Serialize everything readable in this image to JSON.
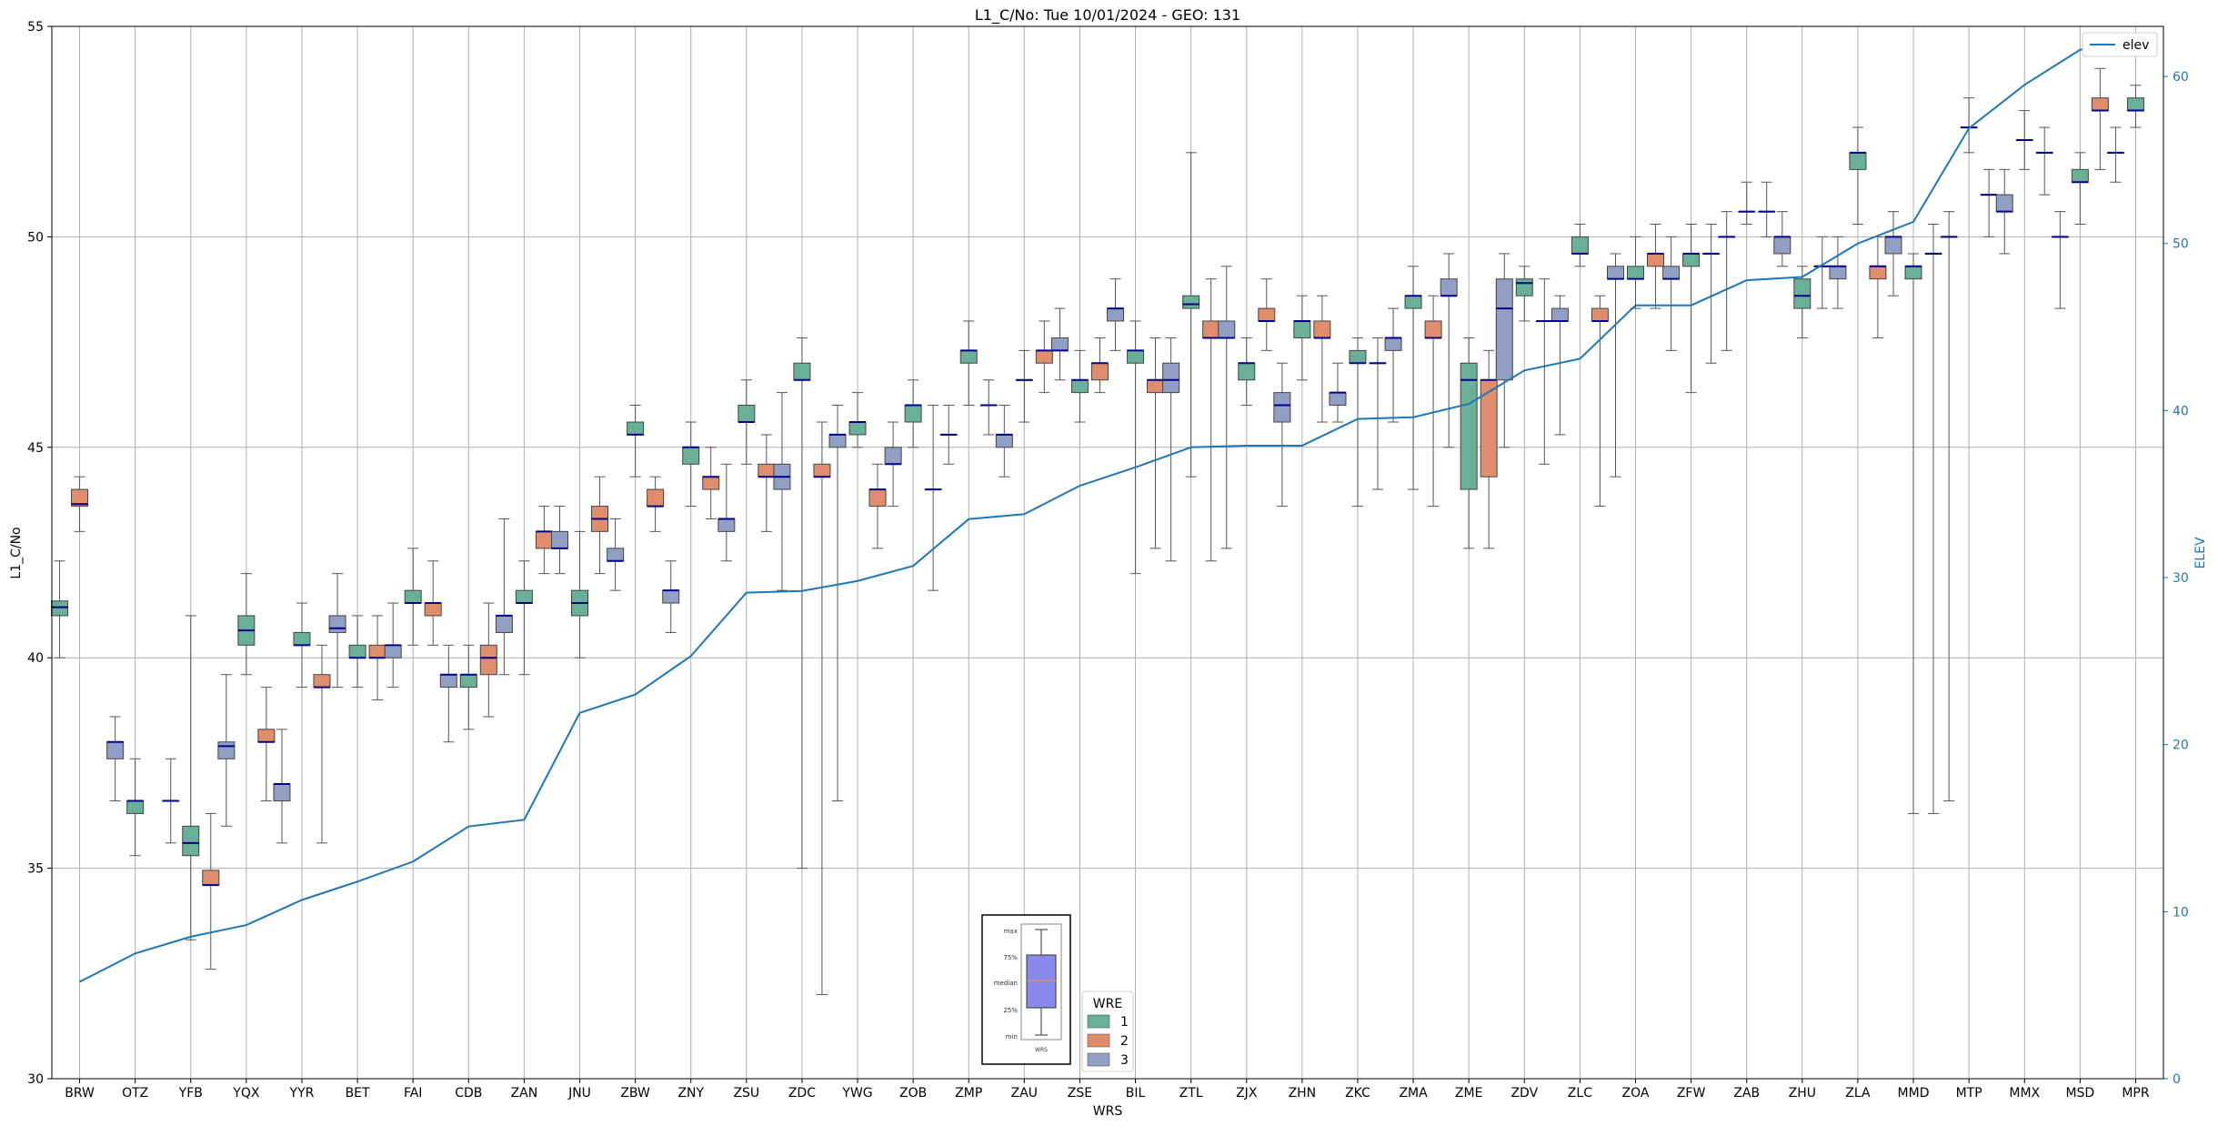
{
  "chart_data": {
    "type": "box",
    "title": "L1_C/No: Tue 10/01/2024 - GEO: 131",
    "xlabel": "WRS",
    "ylabel": "L1_C/No",
    "ylabel_right": "ELEV",
    "ylim": [
      30,
      55
    ],
    "ylim_right": [
      0,
      63
    ],
    "yticks": [
      30,
      35,
      40,
      45,
      50,
      55
    ],
    "yticks_right": [
      0,
      10,
      20,
      30,
      40,
      50,
      60
    ],
    "grid": true,
    "categories": [
      "BRW",
      "OTZ",
      "YFB",
      "YQX",
      "YYR",
      "BET",
      "FAI",
      "CDB",
      "ZAN",
      "JNU",
      "ZBW",
      "ZNY",
      "ZSU",
      "ZDC",
      "YWG",
      "ZOB",
      "ZMP",
      "ZAU",
      "ZSE",
      "BIL",
      "ZTL",
      "ZJX",
      "ZHN",
      "ZKC",
      "ZMA",
      "ZME",
      "ZDV",
      "ZLC",
      "ZOA",
      "ZFW",
      "ZAB",
      "ZHU",
      "ZLA",
      "MMD",
      "MTP",
      "MMX",
      "MSD",
      "MPR"
    ],
    "legend": {
      "title": "WRE",
      "entries": [
        "1",
        "2",
        "3"
      ],
      "placement": "lower-center"
    },
    "colors": {
      "1": "#6aaf97",
      "2": "#e08d6d",
      "3": "#929fc4",
      "median": "#00008b",
      "line": "#1f77b4",
      "whisker": "#555555"
    },
    "elev_legend": "elev",
    "boxes": [
      {
        "cat": "BRW",
        "wre": 1,
        "min": 40.0,
        "q1": 41.0,
        "median": 41.2,
        "q3": 41.35,
        "max": 42.3
      },
      {
        "cat": "BRW",
        "wre": 2,
        "min": 43.0,
        "q1": 43.6,
        "median": 43.65,
        "q3": 44.0,
        "max": 44.3
      },
      {
        "cat": "OTZ",
        "wre": 3,
        "min": 36.6,
        "q1": 37.6,
        "median": 38.0,
        "q3": 38.0,
        "max": 38.6
      },
      {
        "cat": "OTZ",
        "wre": 1,
        "min": 35.3,
        "q1": 36.3,
        "median": 36.6,
        "q3": 36.6,
        "max": 37.6
      },
      {
        "cat": "YFB",
        "wre": 3,
        "min": 35.6,
        "q1": 36.6,
        "median": 36.6,
        "q3": 36.6,
        "max": 37.6
      },
      {
        "cat": "YFB",
        "wre": 1,
        "min": 33.3,
        "q1": 35.3,
        "median": 35.6,
        "q3": 36.0,
        "max": 41.0
      },
      {
        "cat": "YFB",
        "wre": 2,
        "min": 32.6,
        "q1": 34.6,
        "median": 34.6,
        "q3": 34.95,
        "max": 36.3
      },
      {
        "cat": "YQX",
        "wre": 3,
        "min": 36.0,
        "q1": 37.6,
        "median": 37.9,
        "q3": 38.0,
        "max": 39.6
      },
      {
        "cat": "YQX",
        "wre": 1,
        "min": 39.6,
        "q1": 40.3,
        "median": 40.65,
        "q3": 41.0,
        "max": 42.0
      },
      {
        "cat": "YQX",
        "wre": 2,
        "min": 36.6,
        "q1": 38.0,
        "median": 38.0,
        "q3": 38.3,
        "max": 39.3
      },
      {
        "cat": "YYR",
        "wre": 3,
        "min": 35.6,
        "q1": 36.6,
        "median": 37.0,
        "q3": 37.0,
        "max": 38.3
      },
      {
        "cat": "YYR",
        "wre": 1,
        "min": 39.3,
        "q1": 40.3,
        "median": 40.3,
        "q3": 40.6,
        "max": 41.3
      },
      {
        "cat": "YYR",
        "wre": 2,
        "min": 35.6,
        "q1": 39.3,
        "median": 39.3,
        "q3": 39.6,
        "max": 40.3
      },
      {
        "cat": "BET",
        "wre": 3,
        "min": 39.3,
        "q1": 40.6,
        "median": 40.7,
        "q3": 41.0,
        "max": 42.0
      },
      {
        "cat": "BET",
        "wre": 1,
        "min": 39.3,
        "q1": 40.0,
        "median": 40.0,
        "q3": 40.3,
        "max": 41.0
      },
      {
        "cat": "BET",
        "wre": 2,
        "min": 39.0,
        "q1": 40.0,
        "median": 40.0,
        "q3": 40.3,
        "max": 41.0
      },
      {
        "cat": "FAI",
        "wre": 3,
        "min": 39.3,
        "q1": 40.0,
        "median": 40.3,
        "q3": 40.3,
        "max": 41.3
      },
      {
        "cat": "FAI",
        "wre": 1,
        "min": 40.3,
        "q1": 41.3,
        "median": 41.3,
        "q3": 41.6,
        "max": 42.6
      },
      {
        "cat": "FAI",
        "wre": 2,
        "min": 40.3,
        "q1": 41.0,
        "median": 41.3,
        "q3": 41.3,
        "max": 42.3
      },
      {
        "cat": "CDB",
        "wre": 3,
        "min": 38.0,
        "q1": 39.3,
        "median": 39.6,
        "q3": 39.6,
        "max": 40.3
      },
      {
        "cat": "CDB",
        "wre": 1,
        "min": 38.3,
        "q1": 39.3,
        "median": 39.6,
        "q3": 39.6,
        "max": 40.3
      },
      {
        "cat": "CDB",
        "wre": 2,
        "min": 38.6,
        "q1": 39.6,
        "median": 40.0,
        "q3": 40.3,
        "max": 41.3
      },
      {
        "cat": "ZAN",
        "wre": 3,
        "min": 39.6,
        "q1": 40.6,
        "median": 41.0,
        "q3": 41.0,
        "max": 43.3
      },
      {
        "cat": "ZAN",
        "wre": 1,
        "min": 39.6,
        "q1": 41.3,
        "median": 41.3,
        "q3": 41.6,
        "max": 42.3
      },
      {
        "cat": "ZAN",
        "wre": 2,
        "min": 42.0,
        "q1": 42.6,
        "median": 43.0,
        "q3": 43.0,
        "max": 43.6
      },
      {
        "cat": "JNU",
        "wre": 3,
        "min": 42.0,
        "q1": 42.6,
        "median": 42.6,
        "q3": 43.0,
        "max": 43.6
      },
      {
        "cat": "JNU",
        "wre": 1,
        "min": 40.0,
        "q1": 41.0,
        "median": 41.3,
        "q3": 41.6,
        "max": 43.0
      },
      {
        "cat": "JNU",
        "wre": 2,
        "min": 42.0,
        "q1": 43.0,
        "median": 43.3,
        "q3": 43.6,
        "max": 44.3
      },
      {
        "cat": "ZBW",
        "wre": 3,
        "min": 41.6,
        "q1": 42.3,
        "median": 42.3,
        "q3": 42.6,
        "max": 43.3
      },
      {
        "cat": "ZBW",
        "wre": 1,
        "min": 44.3,
        "q1": 45.3,
        "median": 45.3,
        "q3": 45.6,
        "max": 46.0
      },
      {
        "cat": "ZBW",
        "wre": 2,
        "min": 43.0,
        "q1": 43.6,
        "median": 43.6,
        "q3": 44.0,
        "max": 44.3
      },
      {
        "cat": "ZNY",
        "wre": 3,
        "min": 40.6,
        "q1": 41.3,
        "median": 41.6,
        "q3": 41.6,
        "max": 42.3
      },
      {
        "cat": "ZNY",
        "wre": 1,
        "min": 43.6,
        "q1": 44.6,
        "median": 45.0,
        "q3": 45.0,
        "max": 45.6
      },
      {
        "cat": "ZNY",
        "wre": 2,
        "min": 43.3,
        "q1": 44.0,
        "median": 44.3,
        "q3": 44.3,
        "max": 45.0
      },
      {
        "cat": "ZSU",
        "wre": 3,
        "min": 42.3,
        "q1": 43.0,
        "median": 43.3,
        "q3": 43.3,
        "max": 44.6
      },
      {
        "cat": "ZSU",
        "wre": 1,
        "min": 44.6,
        "q1": 45.6,
        "median": 45.6,
        "q3": 46.0,
        "max": 46.6
      },
      {
        "cat": "ZSU",
        "wre": 2,
        "min": 43.0,
        "q1": 44.3,
        "median": 44.3,
        "q3": 44.6,
        "max": 45.3
      },
      {
        "cat": "ZDC",
        "wre": 3,
        "min": 41.6,
        "q1": 44.0,
        "median": 44.3,
        "q3": 44.6,
        "max": 46.3
      },
      {
        "cat": "ZDC",
        "wre": 1,
        "min": 35.0,
        "q1": 46.6,
        "median": 46.6,
        "q3": 47.0,
        "max": 47.6
      },
      {
        "cat": "ZDC",
        "wre": 2,
        "min": 32.0,
        "q1": 44.3,
        "median": 44.3,
        "q3": 44.6,
        "max": 45.6
      },
      {
        "cat": "YWG",
        "wre": 3,
        "min": 36.6,
        "q1": 45.0,
        "median": 45.3,
        "q3": 45.3,
        "max": 46.0
      },
      {
        "cat": "YWG",
        "wre": 1,
        "min": 45.0,
        "q1": 45.3,
        "median": 45.6,
        "q3": 45.6,
        "max": 46.3
      },
      {
        "cat": "YWG",
        "wre": 2,
        "min": 42.6,
        "q1": 43.6,
        "median": 44.0,
        "q3": 44.0,
        "max": 44.6
      },
      {
        "cat": "ZOB",
        "wre": 3,
        "min": 43.6,
        "q1": 44.6,
        "median": 44.6,
        "q3": 45.0,
        "max": 45.6
      },
      {
        "cat": "ZOB",
        "wre": 1,
        "min": 45.0,
        "q1": 45.6,
        "median": 46.0,
        "q3": 46.0,
        "max": 46.6
      },
      {
        "cat": "ZOB",
        "wre": 2,
        "min": 41.6,
        "q1": 44.0,
        "median": 44.0,
        "q3": 44.0,
        "max": 46.0
      },
      {
        "cat": "ZMP",
        "wre": 3,
        "min": 44.6,
        "q1": 45.3,
        "median": 45.3,
        "q3": 45.3,
        "max": 46.0
      },
      {
        "cat": "ZMP",
        "wre": 1,
        "min": 46.0,
        "q1": 47.0,
        "median": 47.3,
        "q3": 47.3,
        "max": 48.0
      },
      {
        "cat": "ZMP",
        "wre": 2,
        "min": 45.3,
        "q1": 46.0,
        "median": 46.0,
        "q3": 46.0,
        "max": 46.6
      },
      {
        "cat": "ZAU",
        "wre": 3,
        "min": 44.3,
        "q1": 45.0,
        "median": 45.3,
        "q3": 45.3,
        "max": 46.0
      },
      {
        "cat": "ZAU",
        "wre": 1,
        "min": 45.6,
        "q1": 46.6,
        "median": 46.6,
        "q3": 46.6,
        "max": 47.3
      },
      {
        "cat": "ZAU",
        "wre": 2,
        "min": 46.3,
        "q1": 47.0,
        "median": 47.3,
        "q3": 47.3,
        "max": 48.0
      },
      {
        "cat": "ZSE",
        "wre": 3,
        "min": 46.6,
        "q1": 47.3,
        "median": 47.3,
        "q3": 47.6,
        "max": 48.3
      },
      {
        "cat": "ZSE",
        "wre": 1,
        "min": 45.6,
        "q1": 46.3,
        "median": 46.6,
        "q3": 46.6,
        "max": 47.3
      },
      {
        "cat": "ZSE",
        "wre": 2,
        "min": 46.3,
        "q1": 46.6,
        "median": 47.0,
        "q3": 47.0,
        "max": 47.6
      },
      {
        "cat": "BIL",
        "wre": 3,
        "min": 47.3,
        "q1": 48.0,
        "median": 48.3,
        "q3": 48.3,
        "max": 49.0
      },
      {
        "cat": "BIL",
        "wre": 1,
        "min": 42.0,
        "q1": 47.0,
        "median": 47.3,
        "q3": 47.3,
        "max": 48.0
      },
      {
        "cat": "BIL",
        "wre": 2,
        "min": 42.6,
        "q1": 46.3,
        "median": 46.6,
        "q3": 46.6,
        "max": 47.6
      },
      {
        "cat": "ZTL",
        "wre": 3,
        "min": 42.3,
        "q1": 46.3,
        "median": 46.6,
        "q3": 47.0,
        "max": 47.6
      },
      {
        "cat": "ZTL",
        "wre": 1,
        "min": 44.3,
        "q1": 48.3,
        "median": 48.4,
        "q3": 48.6,
        "max": 52.0
      },
      {
        "cat": "ZTL",
        "wre": 2,
        "min": 42.3,
        "q1": 47.6,
        "median": 47.6,
        "q3": 48.0,
        "max": 49.0
      },
      {
        "cat": "ZJX",
        "wre": 3,
        "min": 42.6,
        "q1": 47.6,
        "median": 47.6,
        "q3": 48.0,
        "max": 49.3
      },
      {
        "cat": "ZJX",
        "wre": 1,
        "min": 46.0,
        "q1": 46.6,
        "median": 47.0,
        "q3": 47.0,
        "max": 47.6
      },
      {
        "cat": "ZJX",
        "wre": 2,
        "min": 47.3,
        "q1": 48.0,
        "median": 48.0,
        "q3": 48.3,
        "max": 49.0
      },
      {
        "cat": "ZHN",
        "wre": 3,
        "min": 43.6,
        "q1": 45.6,
        "median": 46.0,
        "q3": 46.3,
        "max": 47.0
      },
      {
        "cat": "ZHN",
        "wre": 1,
        "min": 46.6,
        "q1": 47.6,
        "median": 48.0,
        "q3": 48.0,
        "max": 48.6
      },
      {
        "cat": "ZHN",
        "wre": 2,
        "min": 45.6,
        "q1": 47.6,
        "median": 47.6,
        "q3": 48.0,
        "max": 48.6
      },
      {
        "cat": "ZKC",
        "wre": 3,
        "min": 45.6,
        "q1": 46.0,
        "median": 46.3,
        "q3": 46.3,
        "max": 47.0
      },
      {
        "cat": "ZKC",
        "wre": 1,
        "min": 43.6,
        "q1": 47.0,
        "median": 47.0,
        "q3": 47.3,
        "max": 47.6
      },
      {
        "cat": "ZKC",
        "wre": 2,
        "min": 44.0,
        "q1": 47.0,
        "median": 47.0,
        "q3": 47.0,
        "max": 47.6
      },
      {
        "cat": "ZMA",
        "wre": 3,
        "min": 45.6,
        "q1": 47.3,
        "median": 47.6,
        "q3": 47.6,
        "max": 48.3
      },
      {
        "cat": "ZMA",
        "wre": 1,
        "min": 44.0,
        "q1": 48.3,
        "median": 48.6,
        "q3": 48.6,
        "max": 49.3
      },
      {
        "cat": "ZMA",
        "wre": 2,
        "min": 43.6,
        "q1": 47.6,
        "median": 47.6,
        "q3": 48.0,
        "max": 48.6
      },
      {
        "cat": "ZME",
        "wre": 3,
        "min": 45.0,
        "q1": 48.6,
        "median": 48.6,
        "q3": 49.0,
        "max": 49.6
      },
      {
        "cat": "ZME",
        "wre": 1,
        "min": 42.6,
        "q1": 44.0,
        "median": 46.6,
        "q3": 47.0,
        "max": 47.6
      },
      {
        "cat": "ZME",
        "wre": 2,
        "min": 42.6,
        "q1": 44.3,
        "median": 46.6,
        "q3": 46.6,
        "max": 47.3
      },
      {
        "cat": "ZDV",
        "wre": 3,
        "min": 45.0,
        "q1": 46.6,
        "median": 48.3,
        "q3": 49.0,
        "max": 49.6
      },
      {
        "cat": "ZDV",
        "wre": 1,
        "min": 48.0,
        "q1": 48.6,
        "median": 48.9,
        "q3": 49.0,
        "max": 49.3
      },
      {
        "cat": "ZDV",
        "wre": 2,
        "min": 44.6,
        "q1": 48.0,
        "median": 48.0,
        "q3": 48.0,
        "max": 49.0
      },
      {
        "cat": "ZLC",
        "wre": 3,
        "min": 45.3,
        "q1": 48.0,
        "median": 48.0,
        "q3": 48.3,
        "max": 48.6
      },
      {
        "cat": "ZLC",
        "wre": 1,
        "min": 49.3,
        "q1": 49.6,
        "median": 49.6,
        "q3": 50.0,
        "max": 50.3
      },
      {
        "cat": "ZLC",
        "wre": 2,
        "min": 43.6,
        "q1": 48.0,
        "median": 48.0,
        "q3": 48.3,
        "max": 48.6
      },
      {
        "cat": "ZOA",
        "wre": 3,
        "min": 44.3,
        "q1": 49.0,
        "median": 49.0,
        "q3": 49.3,
        "max": 49.6
      },
      {
        "cat": "ZOA",
        "wre": 1,
        "min": 48.3,
        "q1": 49.0,
        "median": 49.0,
        "q3": 49.3,
        "max": 50.0
      },
      {
        "cat": "ZOA",
        "wre": 2,
        "min": 48.3,
        "q1": 49.3,
        "median": 49.6,
        "q3": 49.6,
        "max": 50.3
      },
      {
        "cat": "ZFW",
        "wre": 3,
        "min": 47.3,
        "q1": 49.0,
        "median": 49.0,
        "q3": 49.3,
        "max": 50.0
      },
      {
        "cat": "ZFW",
        "wre": 1,
        "min": 46.3,
        "q1": 49.3,
        "median": 49.6,
        "q3": 49.6,
        "max": 50.3
      },
      {
        "cat": "ZFW",
        "wre": 2,
        "min": 47.0,
        "q1": 49.6,
        "median": 49.6,
        "q3": 49.6,
        "max": 50.3
      },
      {
        "cat": "ZAB",
        "wre": 3,
        "min": 47.3,
        "q1": 50.0,
        "median": 50.0,
        "q3": 50.0,
        "max": 50.6
      },
      {
        "cat": "ZAB",
        "wre": 1,
        "min": 50.3,
        "q1": 50.6,
        "median": 50.6,
        "q3": 50.6,
        "max": 51.3
      },
      {
        "cat": "ZAB",
        "wre": 2,
        "min": 50.0,
        "q1": 50.6,
        "median": 50.6,
        "q3": 50.6,
        "max": 51.3
      },
      {
        "cat": "ZHU",
        "wre": 3,
        "min": 49.3,
        "q1": 49.6,
        "median": 50.0,
        "q3": 50.0,
        "max": 50.6
      },
      {
        "cat": "ZHU",
        "wre": 1,
        "min": 47.6,
        "q1": 48.3,
        "median": 48.6,
        "q3": 49.0,
        "max": 49.3
      },
      {
        "cat": "ZHU",
        "wre": 2,
        "min": 48.3,
        "q1": 49.3,
        "median": 49.3,
        "q3": 49.3,
        "max": 50.0
      },
      {
        "cat": "ZLA",
        "wre": 3,
        "min": 48.3,
        "q1": 49.0,
        "median": 49.3,
        "q3": 49.3,
        "max": 50.0
      },
      {
        "cat": "ZLA",
        "wre": 1,
        "min": 50.3,
        "q1": 51.6,
        "median": 52.0,
        "q3": 52.0,
        "max": 52.6
      },
      {
        "cat": "ZLA",
        "wre": 2,
        "min": 47.6,
        "q1": 49.0,
        "median": 49.3,
        "q3": 49.3,
        "max": 50.0
      },
      {
        "cat": "MMD",
        "wre": 3,
        "min": 48.6,
        "q1": 49.6,
        "median": 50.0,
        "q3": 50.0,
        "max": 50.6
      },
      {
        "cat": "MMD",
        "wre": 1,
        "min": 36.3,
        "q1": 49.0,
        "median": 49.3,
        "q3": 49.3,
        "max": 49.6
      },
      {
        "cat": "MMD",
        "wre": 2,
        "min": 36.3,
        "q1": 49.6,
        "median": 49.6,
        "q3": 49.6,
        "max": 50.3
      },
      {
        "cat": "MTP",
        "wre": 3,
        "min": 36.6,
        "q1": 50.0,
        "median": 50.0,
        "q3": 50.0,
        "max": 50.6
      },
      {
        "cat": "MTP",
        "wre": 1,
        "min": 52.0,
        "q1": 52.6,
        "median": 52.6,
        "q3": 52.6,
        "max": 53.3
      },
      {
        "cat": "MTP",
        "wre": 2,
        "min": 50.0,
        "q1": 51.0,
        "median": 51.0,
        "q3": 51.0,
        "max": 51.6
      },
      {
        "cat": "MMX",
        "wre": 3,
        "min": 49.6,
        "q1": 50.6,
        "median": 50.6,
        "q3": 51.0,
        "max": 51.6
      },
      {
        "cat": "MMX",
        "wre": 1,
        "min": 51.6,
        "q1": 52.3,
        "median": 52.3,
        "q3": 52.3,
        "max": 53.0
      },
      {
        "cat": "MMX",
        "wre": 2,
        "min": 51.0,
        "q1": 52.0,
        "median": 52.0,
        "q3": 52.0,
        "max": 52.6
      },
      {
        "cat": "MSD",
        "wre": 3,
        "min": 48.3,
        "q1": 50.0,
        "median": 50.0,
        "q3": 50.0,
        "max": 50.6
      },
      {
        "cat": "MSD",
        "wre": 1,
        "min": 50.3,
        "q1": 51.3,
        "median": 51.3,
        "q3": 51.6,
        "max": 52.0
      },
      {
        "cat": "MSD",
        "wre": 2,
        "min": 51.6,
        "q1": 53.0,
        "median": 53.0,
        "q3": 53.3,
        "max": 54.0
      },
      {
        "cat": "MPR",
        "wre": 3,
        "min": 51.3,
        "q1": 52.0,
        "median": 52.0,
        "q3": 52.0,
        "max": 52.6
      },
      {
        "cat": "MPR",
        "wre": 1,
        "min": 52.6,
        "q1": 53.0,
        "median": 53.0,
        "q3": 53.3,
        "max": 53.6
      }
    ],
    "elev": [
      5.8,
      7.5,
      8.5,
      9.2,
      10.7,
      11.8,
      13.0,
      15.1,
      15.5,
      21.9,
      23.0,
      25.3,
      29.1,
      29.2,
      29.8,
      30.7,
      33.5,
      33.8,
      35.5,
      36.6,
      37.8,
      37.9,
      37.9,
      39.5,
      39.6,
      40.4,
      42.4,
      43.1,
      46.3,
      46.3,
      47.8,
      48.0,
      50.0,
      51.3,
      56.9,
      59.5,
      61.6,
      62.2
    ],
    "inset_box_labels": [
      "max",
      "75%",
      "median",
      "25%",
      "min",
      "WRS"
    ]
  }
}
